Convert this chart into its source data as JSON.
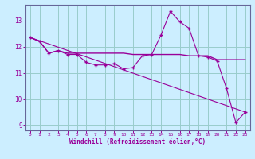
{
  "bg_color": "#cceeff",
  "grid_color": "#99cccc",
  "line_color": "#990099",
  "spine_color": "#666699",
  "xlim": [
    -0.5,
    23.5
  ],
  "ylim": [
    8.8,
    13.6
  ],
  "yticks": [
    9,
    10,
    11,
    12,
    13
  ],
  "xticks": [
    0,
    1,
    2,
    3,
    4,
    5,
    6,
    7,
    8,
    9,
    10,
    11,
    12,
    13,
    14,
    15,
    16,
    17,
    18,
    19,
    20,
    21,
    22,
    23
  ],
  "xlabel": "Windchill (Refroidissement éolien,°C)",
  "series1_x": [
    0,
    1,
    2,
    3,
    4,
    5,
    6,
    7,
    8,
    9,
    10,
    11,
    12,
    13,
    14,
    15,
    16,
    17,
    18,
    19,
    20,
    21,
    22,
    23
  ],
  "series1_y": [
    12.35,
    12.2,
    11.75,
    11.85,
    11.7,
    11.7,
    11.4,
    11.3,
    11.3,
    11.35,
    11.15,
    11.2,
    11.65,
    11.7,
    12.45,
    13.35,
    12.95,
    12.7,
    11.65,
    11.6,
    11.45,
    10.4,
    9.1,
    9.5
  ],
  "series2_x": [
    0,
    1,
    2,
    3,
    4,
    5,
    6,
    7,
    8,
    9,
    10,
    11,
    12,
    13,
    14,
    15,
    16,
    17,
    18,
    19,
    20,
    21,
    22,
    23
  ],
  "series2_y": [
    12.35,
    12.2,
    11.75,
    11.85,
    11.75,
    11.75,
    11.75,
    11.75,
    11.75,
    11.75,
    11.75,
    11.7,
    11.7,
    11.7,
    11.7,
    11.7,
    11.7,
    11.65,
    11.65,
    11.65,
    11.5,
    11.5,
    11.5,
    11.5
  ],
  "series3_x": [
    0,
    23
  ],
  "series3_y": [
    12.35,
    9.5
  ]
}
